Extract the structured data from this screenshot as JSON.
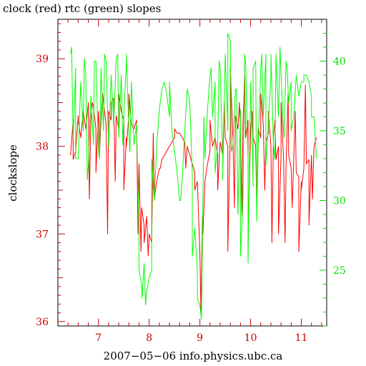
{
  "chart_data": {
    "type": "line",
    "title": "clock (red) rtc (green) slopes",
    "xlabel": "2007−05−06 info.physics.ubc.ca",
    "ylabel": "clockslope",
    "xlim": [
      6.2,
      11.5
    ],
    "ylim_left": [
      35.95,
      39.45
    ],
    "ylim_right": [
      21,
      43
    ],
    "x_ticks": [
      7,
      8,
      9,
      10,
      11
    ],
    "y_ticks_left": [
      36,
      37,
      38,
      39
    ],
    "y_ticks_right": [
      25,
      30,
      35,
      40
    ],
    "series": [
      {
        "axis": "left",
        "color": "#ff0000",
        "x": [
          6.45,
          6.5,
          6.55,
          6.6,
          6.65,
          6.7,
          6.75,
          6.8,
          6.85,
          6.9,
          6.95,
          7.0,
          7.05,
          7.1,
          7.15,
          7.2,
          7.25,
          7.3,
          7.35,
          7.4,
          7.45,
          7.5,
          7.55,
          7.6,
          7.65,
          7.7,
          7.75,
          7.8,
          7.85,
          7.9,
          7.95,
          8.0,
          8.05,
          8.1,
          8.15,
          8.2,
          8.25,
          8.3,
          8.35,
          8.4,
          8.45,
          8.5,
          8.55,
          8.6,
          8.65,
          8.7,
          8.75,
          8.8,
          8.85,
          8.9,
          8.95,
          9.0,
          9.05,
          9.1,
          9.15,
          9.2,
          9.25,
          9.3,
          9.35,
          9.4,
          9.45,
          9.5,
          9.55,
          9.6,
          9.65,
          9.7,
          9.75,
          9.8,
          9.85,
          9.9,
          9.95,
          10.0,
          10.05,
          10.1,
          10.15,
          10.2,
          10.25,
          10.3,
          10.35,
          10.4,
          10.45,
          10.5,
          10.55,
          10.6,
          10.65,
          10.7,
          10.75,
          10.8,
          10.85,
          10.9,
          10.95,
          11.0,
          11.05,
          11.1,
          11.15,
          11.2,
          11.25,
          11.3
        ],
        "values": [
          37.9,
          38.3,
          37.95,
          38.35,
          38.1,
          38.4,
          38.2,
          38.5,
          38.3,
          38.45,
          38.2,
          38.4,
          38.3,
          38.5,
          38.25,
          38.4,
          38.3,
          38.55,
          38.35,
          38.2,
          38.4,
          38.3,
          38.1,
          38.35,
          38.25,
          38.2,
          38.3,
          37.8,
          37.3,
          37.1,
          37.2,
          37.0,
          36.9,
          37.4,
          37.6,
          37.75,
          37.85,
          37.9,
          37.95,
          38.0,
          38.05,
          38.1,
          38.15,
          38.15,
          38.1,
          38.05,
          38.0,
          37.9,
          37.8,
          37.7,
          37.6,
          36.8,
          37.2,
          37.6,
          37.8,
          37.95,
          38.0,
          38.1,
          37.9,
          38.05,
          37.9,
          38.1,
          38.0,
          38.2,
          38.1,
          38.35,
          38.2,
          38.15,
          38.25,
          38.1,
          38.3,
          38.2,
          38.1,
          38.0,
          38.2,
          38.1,
          38.25,
          38.05,
          38.15,
          38.0,
          38.1,
          37.85,
          38.0,
          37.9,
          37.85,
          37.8,
          37.9,
          37.75,
          37.85,
          37.7,
          37.65,
          37.6,
          37.75,
          37.8,
          37.85,
          37.9,
          38.0,
          38.1
        ],
        "spikes": [
          [
            6.5,
            37.85
          ],
          [
            6.6,
            38.3
          ],
          [
            6.82,
            37.4
          ],
          [
            6.88,
            38.5
          ],
          [
            6.95,
            37.7
          ],
          [
            7.02,
            37.9
          ],
          [
            7.08,
            38.6
          ],
          [
            7.18,
            37.0
          ],
          [
            7.25,
            38.5
          ],
          [
            7.33,
            37.6
          ],
          [
            7.4,
            38.6
          ],
          [
            7.5,
            37.5
          ],
          [
            7.55,
            38.0
          ],
          [
            7.6,
            38.6
          ],
          [
            7.78,
            37.0
          ],
          [
            7.84,
            36.8
          ],
          [
            7.9,
            36.9
          ],
          [
            7.98,
            36.75
          ],
          [
            8.08,
            38.15
          ],
          [
            8.22,
            37.75
          ],
          [
            8.5,
            38.2
          ],
          [
            8.72,
            37.75
          ],
          [
            8.9,
            37.5
          ],
          [
            9.02,
            36.1
          ],
          [
            9.06,
            37.0
          ],
          [
            9.2,
            38.3
          ],
          [
            9.35,
            37.5
          ],
          [
            9.48,
            38.5
          ],
          [
            9.55,
            36.8
          ],
          [
            9.6,
            38.9
          ],
          [
            9.68,
            37.3
          ],
          [
            9.78,
            38.5
          ],
          [
            9.83,
            37.2
          ],
          [
            9.88,
            38.8
          ],
          [
            9.95,
            36.9
          ],
          [
            10.03,
            38.4
          ],
          [
            10.12,
            37.3
          ],
          [
            10.2,
            38.6
          ],
          [
            10.28,
            37.5
          ],
          [
            10.35,
            38.4
          ],
          [
            10.42,
            36.9
          ],
          [
            10.48,
            38.3
          ],
          [
            10.55,
            37.0
          ],
          [
            10.6,
            38.5
          ],
          [
            10.68,
            36.9
          ],
          [
            10.74,
            38.6
          ],
          [
            10.82,
            37.3
          ],
          [
            10.88,
            38.4
          ],
          [
            10.95,
            36.8
          ],
          [
            11.0,
            37.5
          ],
          [
            11.08,
            38.7
          ],
          [
            11.15,
            37.1
          ],
          [
            11.22,
            37.4
          ]
        ]
      },
      {
        "axis": "right",
        "color": "#00ff00",
        "x": [
          6.45,
          6.5,
          6.55,
          6.6,
          6.65,
          6.7,
          6.75,
          6.8,
          6.85,
          6.9,
          6.95,
          7.0,
          7.05,
          7.1,
          7.15,
          7.2,
          7.25,
          7.3,
          7.35,
          7.4,
          7.45,
          7.5,
          7.55,
          7.6,
          7.65,
          7.7,
          7.75,
          7.8,
          7.85,
          7.9,
          7.95,
          8.0,
          8.05,
          8.1,
          8.15,
          8.2,
          8.25,
          8.3,
          8.35,
          8.4,
          8.45,
          8.5,
          8.55,
          8.6,
          8.65,
          8.7,
          8.75,
          8.8,
          8.85,
          8.9,
          8.95,
          9.0,
          9.05,
          9.1,
          9.15,
          9.2,
          9.25,
          9.3,
          9.35,
          9.4,
          9.45,
          9.5,
          9.55,
          9.6,
          9.65,
          9.7,
          9.75,
          9.8,
          9.85,
          9.9,
          9.95,
          10.0,
          10.05,
          10.1,
          10.15,
          10.2,
          10.25,
          10.3,
          10.35,
          10.4,
          10.45,
          10.5,
          10.55,
          10.6,
          10.65,
          10.7,
          10.75,
          10.8,
          10.85,
          10.9,
          10.95,
          11.0,
          11.05,
          11.1,
          11.15,
          11.2,
          11.25,
          11.3
        ],
        "values": [
          40.5,
          34.5,
          39.5,
          33.0,
          38.5,
          35.0,
          39.0,
          32.5,
          37.5,
          34.0,
          40.0,
          33.5,
          39.5,
          35.0,
          40.0,
          34.0,
          39.0,
          35.5,
          40.2,
          34.5,
          39.0,
          36.0,
          40.0,
          35.0,
          38.5,
          34.0,
          35.5,
          28.0,
          24.0,
          25.5,
          23.5,
          24.5,
          25.0,
          30.0,
          34.0,
          36.5,
          38.0,
          38.5,
          37.5,
          36.0,
          35.0,
          33.5,
          32.0,
          30.0,
          31.5,
          35.0,
          38.0,
          37.0,
          32.0,
          28.0,
          25.0,
          22.5,
          27.0,
          33.0,
          36.5,
          39.0,
          36.0,
          38.5,
          34.0,
          39.5,
          33.0,
          40.5,
          35.0,
          41.5,
          34.0,
          38.0,
          29.0,
          36.5,
          30.0,
          40.0,
          33.0,
          38.5,
          31.0,
          40.0,
          34.0,
          39.5,
          36.0,
          40.5,
          35.5,
          39.0,
          34.0,
          40.5,
          36.0,
          39.0,
          35.0,
          40.0,
          37.0,
          38.5,
          36.0,
          39.0,
          37.5,
          38.5,
          38.5,
          39.0,
          38.5,
          37.5,
          36.0,
          33.0
        ],
        "spikes": [
          [
            6.47,
            41.0
          ],
          [
            6.55,
            33.0
          ],
          [
            6.72,
            40.2
          ],
          [
            6.78,
            31.5
          ],
          [
            6.92,
            40.0
          ],
          [
            7.02,
            33.0
          ],
          [
            7.12,
            40.5
          ],
          [
            7.2,
            33.8
          ],
          [
            7.38,
            40.5
          ],
          [
            7.48,
            34.0
          ],
          [
            7.55,
            40.5
          ],
          [
            7.62,
            33.5
          ],
          [
            7.8,
            25.0
          ],
          [
            7.86,
            23.0
          ],
          [
            7.93,
            22.5
          ],
          [
            8.0,
            24.5
          ],
          [
            8.05,
            33.0
          ],
          [
            8.4,
            38.5
          ],
          [
            8.62,
            30.0
          ],
          [
            8.78,
            37.5
          ],
          [
            8.85,
            26.0
          ],
          [
            8.95,
            23.0
          ],
          [
            9.03,
            21.5
          ],
          [
            9.08,
            36.0
          ],
          [
            9.22,
            39.5
          ],
          [
            9.3,
            32.0
          ],
          [
            9.38,
            40.0
          ],
          [
            9.45,
            31.5
          ],
          [
            9.55,
            42.0
          ],
          [
            9.62,
            33.5
          ],
          [
            9.72,
            38.0
          ],
          [
            9.8,
            26.0
          ],
          [
            9.88,
            40.5
          ],
          [
            9.95,
            25.5
          ],
          [
            10.05,
            39.5
          ],
          [
            10.12,
            28.5
          ],
          [
            10.22,
            40.5
          ],
          [
            10.3,
            32.5
          ],
          [
            10.4,
            40.5
          ],
          [
            10.48,
            33.0
          ],
          [
            10.58,
            41.0
          ],
          [
            10.66,
            34.5
          ],
          [
            10.72,
            39.5
          ],
          [
            10.8,
            35.0
          ],
          [
            10.9,
            39.0
          ],
          [
            11.05,
            39.0
          ],
          [
            11.2,
            36.0
          ]
        ]
      }
    ]
  }
}
